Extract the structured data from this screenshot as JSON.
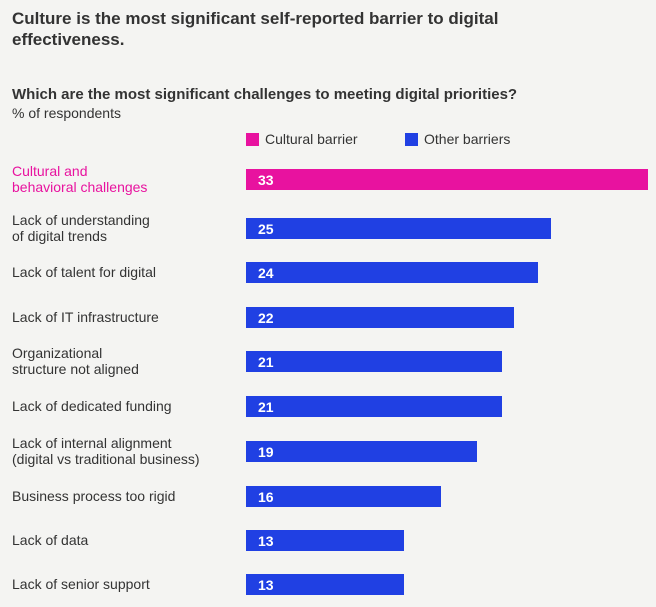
{
  "title": "Culture is the most significant self-reported barrier to digital effectiveness.",
  "chart_data": {
    "type": "bar",
    "orientation": "horizontal",
    "title": "Which are the most significant challenges to meeting digital priorities?",
    "unit": "% of respondents",
    "legend": [
      {
        "name": "Cultural barrier",
        "color": "#e8129f"
      },
      {
        "name": "Other barriers",
        "color": "#2040e3"
      }
    ],
    "legend_position": "top",
    "categories": [
      "Cultural and behavioral challenges",
      "Lack of understanding of digital trends",
      "Lack of talent for digital",
      "Lack of IT infrastructure",
      "Organizational structure not aligned",
      "Lack of dedicated funding",
      "Lack of internal alignment (digital vs traditional business)",
      "Business process too rigid",
      "Lack of data",
      "Lack of senior support"
    ],
    "category_lines": [
      [
        "Cultural and",
        "behavioral challenges"
      ],
      [
        "Lack of understanding",
        "of digital trends"
      ],
      [
        "Lack of talent for digital"
      ],
      [
        "Lack of IT infrastructure"
      ],
      [
        "Organizational",
        "structure not aligned"
      ],
      [
        "Lack of dedicated funding"
      ],
      [
        "Lack of internal alignment",
        "(digital vs traditional business)"
      ],
      [
        "Business process too rigid"
      ],
      [
        "Lack of data"
      ],
      [
        "Lack of senior support"
      ]
    ],
    "values": [
      33,
      25,
      24,
      22,
      21,
      21,
      19,
      16,
      13,
      13
    ],
    "series_index": [
      0,
      1,
      1,
      1,
      1,
      1,
      1,
      1,
      1,
      1
    ],
    "xlim": [
      0,
      33
    ],
    "grid": false
  }
}
